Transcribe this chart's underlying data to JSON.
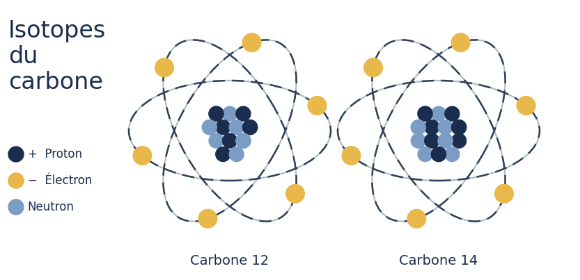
{
  "title": "Isotopes\ndu\ncarbone",
  "title_color": "#1a2d4e",
  "title_fontsize": 24,
  "bg_color": "#ffffff",
  "proton_color": "#1a2d4e",
  "neutron_color": "#7b9cc4",
  "electron_color": "#e8b84b",
  "electron_edge_color": "#c49030",
  "orbit_dark_color": "#2d3f5a",
  "orbit_light_color": "#b0bec5",
  "orbit_lw": 1.8,
  "legend_proton_label": "Proton",
  "legend_electron_label": "Électron",
  "legend_neutron_label": "Neutron",
  "label_c12": "Carbone 12",
  "label_c14": "Carbone 14",
  "label_fontsize": 14,
  "legend_fontsize": 12,
  "figwidth": 8.33,
  "figheight": 4.03,
  "dpi": 100
}
